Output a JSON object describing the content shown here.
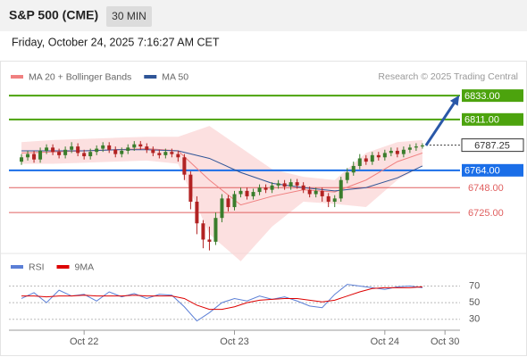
{
  "header": {
    "title": "S&P 500 (CME)",
    "interval": "30 MIN",
    "timestamp": "Friday, October 24, 2025 7:16:27 AM CET",
    "credit": "Research © 2025 Trading Central"
  },
  "chart_data": {
    "type": "candlestick",
    "xlim": [
      -2,
      70
    ],
    "ylim": [
      6688,
      6843
    ],
    "xticks": [
      {
        "value": 10,
        "label": "Oct 22"
      },
      {
        "value": 34,
        "label": "Oct 23"
      },
      {
        "value": 58,
        "label": "Oct 24"
      },
      {
        "value": 67.6,
        "label": "Oct 30"
      }
    ],
    "up_color": "#3a7d2c",
    "down_color": "#b22222",
    "candles": [
      [
        6772,
        6779,
        6769,
        6776
      ],
      [
        6776,
        6782,
        6773,
        6779
      ],
      [
        6779,
        6782,
        6771,
        6774
      ],
      [
        6774,
        6785,
        6771,
        6782
      ],
      [
        6782,
        6788,
        6779,
        6785
      ],
      [
        6785,
        6788,
        6778,
        6781
      ],
      [
        6781,
        6784,
        6775,
        6778
      ],
      [
        6778,
        6786,
        6775,
        6783
      ],
      [
        6783,
        6790,
        6780,
        6786
      ],
      [
        6786,
        6789,
        6777,
        6780
      ],
      [
        6780,
        6783,
        6774,
        6777
      ],
      [
        6777,
        6784,
        6774,
        6781
      ],
      [
        6781,
        6787,
        6778,
        6784
      ],
      [
        6784,
        6790,
        6781,
        6787
      ],
      [
        6787,
        6790,
        6780,
        6783
      ],
      [
        6783,
        6786,
        6776,
        6779
      ],
      [
        6779,
        6785,
        6776,
        6782
      ],
      [
        6782,
        6788,
        6779,
        6785
      ],
      [
        6785,
        6791,
        6782,
        6788
      ],
      [
        6788,
        6791,
        6783,
        6786
      ],
      [
        6786,
        6789,
        6780,
        6783
      ],
      [
        6783,
        6786,
        6777,
        6780
      ],
      [
        6780,
        6783,
        6775,
        6778
      ],
      [
        6778,
        6784,
        6775,
        6781
      ],
      [
        6781,
        6784,
        6776,
        6779
      ],
      [
        6779,
        6782,
        6772,
        6776
      ],
      [
        6776,
        6779,
        6755,
        6760
      ],
      [
        6760,
        6763,
        6728,
        6735
      ],
      [
        6735,
        6740,
        6705,
        6715
      ],
      [
        6715,
        6718,
        6692,
        6700
      ],
      [
        6700,
        6712,
        6690,
        6698
      ],
      [
        6698,
        6725,
        6695,
        6720
      ],
      [
        6720,
        6742,
        6716,
        6738
      ],
      [
        6738,
        6741,
        6726,
        6730
      ],
      [
        6730,
        6745,
        6727,
        6742
      ],
      [
        6742,
        6748,
        6739,
        6745
      ],
      [
        6745,
        6748,
        6737,
        6740
      ],
      [
        6740,
        6747,
        6737,
        6744
      ],
      [
        6744,
        6751,
        6741,
        6748
      ],
      [
        6748,
        6751,
        6743,
        6746
      ],
      [
        6746,
        6753,
        6743,
        6750
      ],
      [
        6750,
        6755,
        6747,
        6752
      ],
      [
        6752,
        6755,
        6746,
        6749
      ],
      [
        6749,
        6756,
        6746,
        6753
      ],
      [
        6753,
        6756,
        6747,
        6750
      ],
      [
        6750,
        6753,
        6743,
        6746
      ],
      [
        6746,
        6749,
        6739,
        6742
      ],
      [
        6742,
        6748,
        6739,
        6745
      ],
      [
        6745,
        6748,
        6735,
        6740
      ],
      [
        6740,
        6743,
        6730,
        6735
      ],
      [
        6735,
        6741,
        6730,
        6738
      ],
      [
        6738,
        6758,
        6735,
        6755
      ],
      [
        6755,
        6766,
        6752,
        6762
      ],
      [
        6762,
        6772,
        6759,
        6768
      ],
      [
        6768,
        6779,
        6765,
        6775
      ],
      [
        6775,
        6778,
        6769,
        6772
      ],
      [
        6772,
        6781,
        6769,
        6778
      ],
      [
        6778,
        6781,
        6773,
        6776
      ],
      [
        6776,
        6783,
        6773,
        6780
      ],
      [
        6780,
        6785,
        6777,
        6782
      ],
      [
        6782,
        6785,
        6776,
        6779
      ],
      [
        6779,
        6786,
        6776,
        6783
      ],
      [
        6783,
        6788,
        6780,
        6785
      ],
      [
        6785,
        6789,
        6782,
        6786
      ],
      [
        6786,
        6789,
        6784,
        6787
      ]
    ],
    "overlay_x": [
      0,
      5,
      10,
      15,
      20,
      25,
      30,
      35,
      40,
      45,
      50,
      55,
      60,
      64
    ],
    "band_upper": [
      6790,
      6792,
      6793,
      6794,
      6795,
      6795,
      6805,
      6785,
      6765,
      6758,
      6755,
      6780,
      6790,
      6792
    ],
    "band_lower": [
      6770,
      6770,
      6771,
      6772,
      6773,
      6770,
      6705,
      6680,
      6712,
      6735,
      6733,
      6730,
      6755,
      6768
    ],
    "band_color": "#fbd3d3",
    "series": [
      {
        "name": "MA 20 + Bollinger Bands",
        "color": "#f08080",
        "values": [
          6780,
          6781,
          6782,
          6783,
          6784,
          6782,
          6755,
          6732,
          6740,
          6746,
          6744,
          6755,
          6772,
          6780
        ]
      },
      {
        "name": "MA 50",
        "color": "#2f5597",
        "values": [
          6782,
          6782,
          6782,
          6783,
          6783,
          6782,
          6775,
          6762,
          6752,
          6748,
          6745,
          6748,
          6757,
          6768
        ]
      }
    ],
    "levels": [
      {
        "value": 6833,
        "label": "6833.00",
        "color": "#4ca30d",
        "style": "box"
      },
      {
        "value": 6811,
        "label": "6811.00",
        "color": "#4ca30d",
        "style": "box"
      },
      {
        "value": 6787.25,
        "label": "6787.25",
        "color": "#333333",
        "style": "current"
      },
      {
        "value": 6764,
        "label": "6764.00",
        "color": "#1a6ee8",
        "style": "box"
      },
      {
        "value": 6748,
        "label": "6748.00",
        "color": "#e06060",
        "style": "text"
      },
      {
        "value": 6725,
        "label": "6725.00",
        "color": "#e06060",
        "style": "text"
      }
    ],
    "arrow_color": "#2a58a8"
  },
  "rsi": {
    "type": "line",
    "ylim": [
      19,
      92
    ],
    "yticks": [
      70,
      50,
      30
    ],
    "x": [
      0,
      2,
      4,
      6,
      8,
      10,
      12,
      14,
      16,
      18,
      20,
      22,
      24,
      26,
      28,
      30,
      32,
      34,
      36,
      38,
      40,
      42,
      44,
      46,
      48,
      50,
      52,
      54,
      56,
      58,
      60,
      62,
      64
    ],
    "series": [
      {
        "name": "RSI",
        "color": "#5b7fd6",
        "values": [
          55,
          62,
          50,
          65,
          58,
          60,
          52,
          63,
          57,
          61,
          55,
          60,
          59,
          45,
          28,
          38,
          50,
          55,
          52,
          58,
          54,
          57,
          52,
          46,
          44,
          60,
          72,
          70,
          68,
          66,
          69,
          70,
          68
        ]
      },
      {
        "name": "9MA",
        "color": "#dd0000",
        "values": [
          58,
          58,
          57,
          58,
          58,
          59,
          58,
          58,
          58,
          59,
          58,
          58,
          58,
          55,
          47,
          42,
          42,
          45,
          50,
          53,
          54,
          55,
          55,
          53,
          51,
          53,
          58,
          63,
          67,
          68,
          68,
          68,
          69
        ]
      }
    ]
  }
}
